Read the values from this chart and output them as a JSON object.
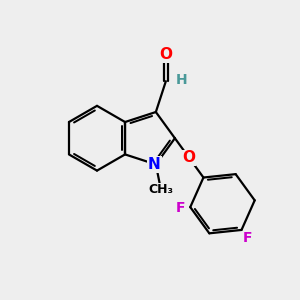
{
  "background_color": "#eeeeee",
  "bond_color": "#000000",
  "atom_colors": {
    "O": "#ff0000",
    "N": "#0000ff",
    "F": "#cc00cc",
    "H": "#4a9999",
    "C": "#000000"
  },
  "bond_width": 1.6,
  "font_size": 11
}
